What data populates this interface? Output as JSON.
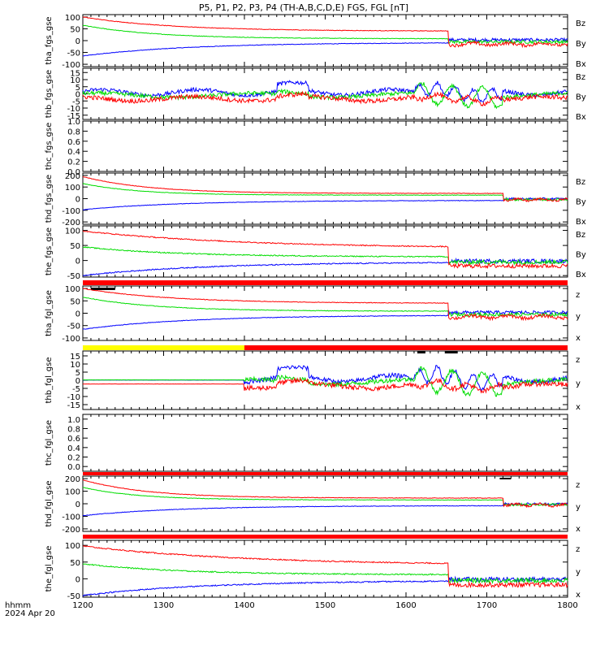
{
  "chart_data": {
    "type": "line",
    "title": "P5, P1, P2, P3, P4 (TH-A,B,C,D,E) FGS, FGL [nT]",
    "x_label_lines": [
      "hhmm",
      "2024 Apr 20"
    ],
    "x_ticks": [
      "1200",
      "1300",
      "1400",
      "1500",
      "1600",
      "1700",
      "1800"
    ],
    "x_range": [
      1200,
      1800
    ],
    "colors": {
      "x": "#0000ff",
      "y": "#00dd00",
      "z": "#ff0000",
      "bar_red": "#ff0000",
      "bar_yellow": "#ffff00",
      "bar_black": "#000000"
    },
    "panels": [
      {
        "ylabel": "tha_fgs_gse",
        "ylim": [
          -110,
          110
        ],
        "yticks": [
          "100",
          "50",
          "0",
          "-50",
          "-100"
        ],
        "legend": [
          "Bz",
          "By",
          "Bx"
        ]
      },
      {
        "ylabel": "thb_fgs_gse",
        "ylim": [
          -18,
          18
        ],
        "yticks": [
          "15",
          "10",
          "5",
          "0",
          "-5",
          "-10",
          "-15"
        ],
        "legend": [
          "Bz",
          "By",
          "Bx"
        ]
      },
      {
        "ylabel": "thc_fgs_gse",
        "ylim": [
          0,
          1
        ],
        "yticks": [
          "1.0",
          "0.8",
          "0.6",
          "0.4",
          "0.2",
          "0.0"
        ],
        "legend": []
      },
      {
        "ylabel": "thd_fgs_gse",
        "ylim": [
          -220,
          220
        ],
        "yticks": [
          "200",
          "100",
          "0",
          "-100",
          "-200"
        ],
        "legend": [
          "Bz",
          "By",
          "Bx"
        ]
      },
      {
        "ylabel": "the_fgs_gse",
        "ylim": [
          -55,
          115
        ],
        "yticks": [
          "100",
          "50",
          "0",
          "-50"
        ],
        "legend": [
          "Bz",
          "By",
          "Bx"
        ]
      },
      {
        "ylabel": "tha_fgl_gse",
        "ylim": [
          -110,
          110
        ],
        "yticks": [
          "100",
          "50",
          "0",
          "-50",
          "-100"
        ],
        "legend": [
          "z",
          "y",
          "x"
        ]
      },
      {
        "ylabel": "thb_fgl_gse",
        "ylim": [
          -18,
          18
        ],
        "yticks": [
          "15",
          "10",
          "5",
          "0",
          "-5",
          "-10",
          "-15"
        ],
        "legend": [
          "z",
          "y",
          "x"
        ]
      },
      {
        "ylabel": "thc_fgl_gse",
        "ylim": [
          -0.1,
          1.1
        ],
        "yticks": [
          "1.0",
          "0.8",
          "0.6",
          "0.4",
          "0.2",
          "0.0"
        ],
        "legend": []
      },
      {
        "ylabel": "thd_fgl_gse",
        "ylim": [
          -220,
          220
        ],
        "yticks": [
          "200",
          "100",
          "0",
          "-100",
          "-200"
        ],
        "legend": [
          "z",
          "y",
          "x"
        ]
      },
      {
        "ylabel": "the_fgl_gse",
        "ylim": [
          -55,
          115
        ],
        "yticks": [
          "100",
          "50",
          "0",
          "-50"
        ],
        "legend": [
          "z",
          "y",
          "x"
        ]
      }
    ]
  }
}
